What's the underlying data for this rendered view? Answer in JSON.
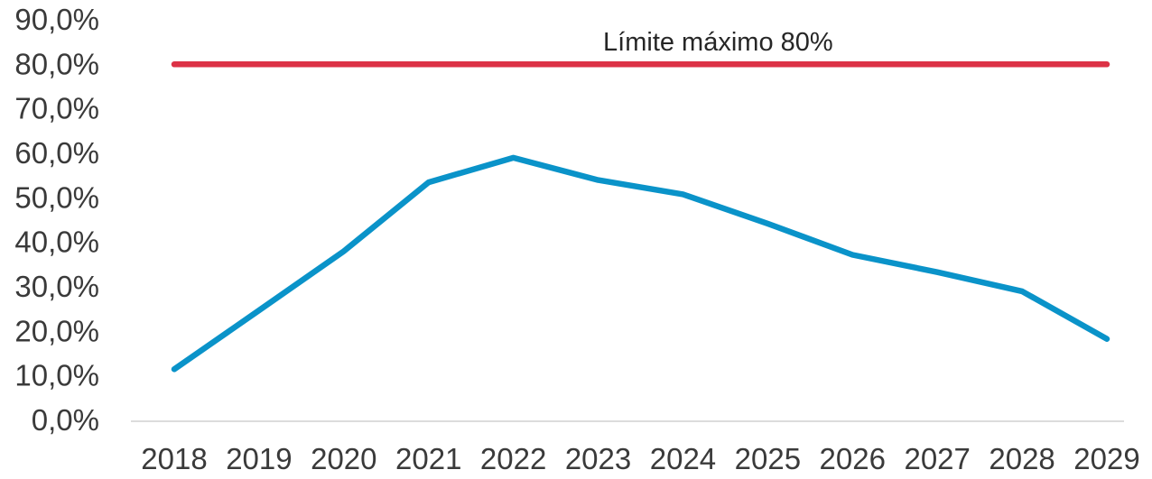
{
  "chart_data": {
    "type": "line",
    "categories": [
      "2018",
      "2019",
      "2020",
      "2021",
      "2022",
      "2023",
      "2024",
      "2025",
      "2026",
      "2027",
      "2028",
      "2029"
    ],
    "y_tick_labels": [
      "0,0%",
      "10,0%",
      "20,0%",
      "30,0%",
      "40,0%",
      "50,0%",
      "60,0%",
      "70,0%",
      "80,0%",
      "90,0%"
    ],
    "y_ticks": [
      0,
      10,
      20,
      30,
      40,
      50,
      60,
      70,
      80,
      90
    ],
    "ylim": [
      0,
      90
    ],
    "series": [
      {
        "values": [
          11.5,
          24.7,
          38.0,
          53.5,
          59.0,
          54.0,
          50.8,
          44.2,
          37.2,
          33.3,
          29.0,
          18.3
        ],
        "color": "#0a93c9"
      },
      {
        "name": "Límite máximo 80%",
        "values": [
          80,
          80,
          80,
          80,
          80,
          80,
          80,
          80,
          80,
          80,
          80,
          80
        ],
        "color": "#dc3246"
      }
    ],
    "annotations": [
      {
        "text": "Límite máximo 80%",
        "anchor_year": "2025",
        "y": 85.5
      }
    ],
    "grid": false,
    "legend": "none",
    "xaxis_line_color": "#d0d0d0"
  }
}
